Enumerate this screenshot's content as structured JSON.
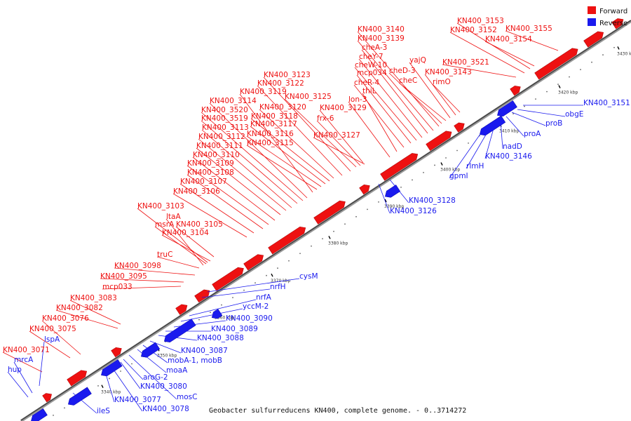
{
  "legend": {
    "items": [
      {
        "label": "Forward",
        "color": "#ee1111"
      },
      {
        "label": "Reverse",
        "color": "#1a1aee"
      }
    ]
  },
  "caption": "Geobacter sulfurreducens KN400, complete genome. - 0..3714272",
  "colors": {
    "forward": "#ee1111",
    "reverse": "#1a1aee",
    "backbone": "#555555"
  },
  "scale_ticks": [
    "3340 kbp",
    "3350 kbp",
    "3360 kbp",
    "3370 kbp",
    "3380 kbp",
    "3390 kbp",
    "3400 kbp",
    "3410 kbp",
    "3420 kbp",
    "3430 kbp"
  ],
  "forward_labels": [
    "KN400_3071",
    "KN400_3075",
    "KN400_3076",
    "KN400_3082",
    "KN400_3083",
    "mcp033",
    "KN400_3095",
    "KN400_3098",
    "truC",
    "KN400_3104",
    "msrA",
    "KN400_3105",
    "ltaA",
    "KN400_3103",
    "KN400_3106",
    "KN400_3107",
    "KN400_3108",
    "KN400_3109",
    "KN400_3110",
    "KN400_3111",
    "KN400_3112",
    "KN400_3113",
    "KN400_3519",
    "KN400_3520",
    "KN400_3114",
    "KN400_3119",
    "KN400_3122",
    "KN400_3123",
    "KN400_3115",
    "KN400_3116",
    "KN400_3117",
    "KN400_3118",
    "KN400_3120",
    "KN400_3125",
    "KN400_3127",
    "frx-6",
    "KN400_3129",
    "lon-3",
    "thiL",
    "cheR-4",
    "mcp034",
    "cheW-10",
    "cheY-7",
    "cheA-3",
    "KN400_3139",
    "KN400_3140",
    "cheD-3",
    "cheC",
    "yajQ",
    "KN400_3143",
    "rimO",
    "KN400_3521",
    "KN400_3152",
    "KN400_3153",
    "KN400_3154",
    "KN400_3155"
  ],
  "reverse_labels": [
    "hup",
    "mrcA",
    "lspA",
    "ileS",
    "KN400_3077",
    "KN400_3078",
    "KN400_3080",
    "aroG-2",
    "mosC",
    "moaA",
    "mobA-1, mobB",
    "KN400_3087",
    "KN400_3088",
    "KN400_3089",
    "KN400_3090",
    "yccM-2",
    "nrfA",
    "nrfH",
    "cysM",
    "KN400_3126",
    "KN400_3128",
    "gpmI",
    "rlmH",
    "KN400_3146",
    "nadD",
    "proA",
    "proB",
    "obgE",
    "KN400_3151"
  ]
}
